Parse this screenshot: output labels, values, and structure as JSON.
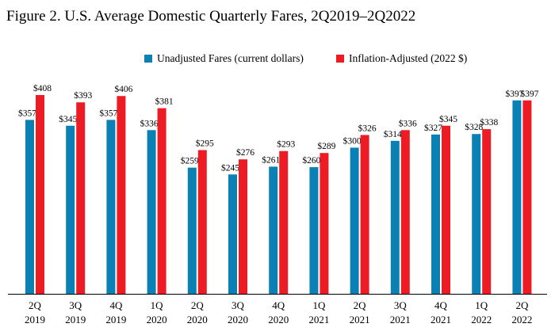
{
  "title": "Figure 2. U.S. Average Domestic Quarterly Fares, 2Q2019–2Q2022",
  "colors": {
    "series1": "#0a80b5",
    "series2": "#ed1c24"
  },
  "chart_data": {
    "type": "bar",
    "title": "Figure 2. U.S. Average Domestic Quarterly Fares, 2Q2019–2Q2022",
    "xlabel": "",
    "ylabel": "",
    "ylim": [
      0,
      408
    ],
    "grid": false,
    "legend_position": "top",
    "categories": [
      [
        "2Q",
        "2019"
      ],
      [
        "3Q",
        "2019"
      ],
      [
        "4Q",
        "2019"
      ],
      [
        "1Q",
        "2020"
      ],
      [
        "2Q",
        "2020"
      ],
      [
        "3Q",
        "2020"
      ],
      [
        "4Q",
        "2020"
      ],
      [
        "1Q",
        "2021"
      ],
      [
        "2Q",
        "2021"
      ],
      [
        "3Q",
        "2021"
      ],
      [
        "4Q",
        "2021"
      ],
      [
        "1Q",
        "2022"
      ],
      [
        "2Q",
        "2022"
      ]
    ],
    "series": [
      {
        "name": "Unadjusted Fares (current dollars)",
        "color": "#0a80b5",
        "values": [
          357,
          345,
          357,
          336,
          259,
          245,
          261,
          260,
          300,
          314,
          327,
          328,
          397
        ],
        "labels": [
          "$357",
          "$345",
          "$357",
          "$336",
          "$259",
          "$245",
          "$261",
          "$260",
          "$300",
          "$314",
          "$327",
          "$328",
          "$397"
        ]
      },
      {
        "name": "Inflation-Adjusted (2022 $)",
        "color": "#ed1c24",
        "values": [
          408,
          393,
          406,
          381,
          295,
          276,
          293,
          289,
          326,
          336,
          345,
          338,
          397
        ],
        "labels": [
          "$408",
          "$393",
          "$406",
          "$381",
          "$295",
          "$276",
          "$293",
          "$289",
          "$326",
          "$336",
          "$345",
          "$338",
          "$397"
        ]
      }
    ]
  }
}
